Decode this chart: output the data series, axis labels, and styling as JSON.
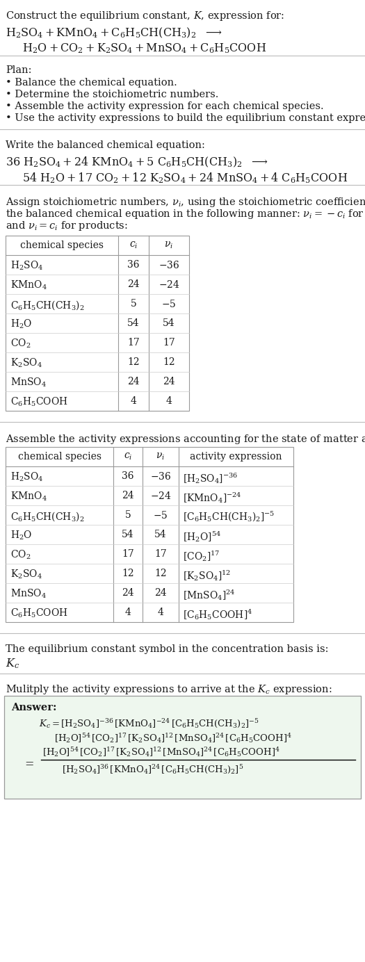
{
  "bg_color": "#ffffff",
  "text_color": "#1a1a1a",
  "font_size_body": 10.5,
  "font_size_chem": 11.5,
  "font_size_table": 10.0,
  "font_size_small": 9.5,
  "sections": {
    "title": "Construct the equilibrium constant, $K$, expression for:",
    "rxn_line1": "$\\mathrm{H_2SO_4 + KMnO_4 + C_6H_5CH(CH_3)_2}$  $\\longrightarrow$",
    "rxn_line2": "  $\\mathrm{H_2O + CO_2 + K_2SO_4 + MnSO_4 + C_6H_5COOH}$",
    "plan_header": "Plan:",
    "plan_items": [
      "\\textbullet\\ Balance the chemical equation.",
      "\\textbullet\\ Determine the stoichiometric numbers.",
      "\\textbullet\\ Assemble the activity expression for each chemical species.",
      "\\textbullet\\ Use the activity expressions to build the equilibrium constant expression."
    ],
    "bal_header": "Write the balanced chemical equation:",
    "bal_line1": "$\\mathrm{36\\ H_2SO_4 + 24\\ KMnO_4 + 5\\ C_6H_5CH(CH_3)_2}$  $\\longrightarrow$",
    "bal_line2": "  $\\mathrm{54\\ H_2O + 17\\ CO_2 + 12\\ K_2SO_4 + 24\\ MnSO_4 + 4\\ C_6H_5COOH}$",
    "stoich_header": "Assign stoichiometric numbers, $\\nu_i$, using the stoichiometric coefficients, $c_i$, from\nthe balanced chemical equation in the following manner: $\\nu_i = -c_i$ for reactants\nand $\\nu_i = c_i$ for products:",
    "table1_col_headers": [
      "chemical species",
      "$c_i$",
      "$\\nu_i$"
    ],
    "table1_rows": [
      [
        "$\\mathrm{H_2SO_4}$",
        "36",
        "$-36$"
      ],
      [
        "$\\mathrm{KMnO_4}$",
        "24",
        "$-24$"
      ],
      [
        "$\\mathrm{C_6H_5CH(CH_3)_2}$",
        "5",
        "$-5$"
      ],
      [
        "$\\mathrm{H_2O}$",
        "54",
        "54"
      ],
      [
        "$\\mathrm{CO_2}$",
        "17",
        "17"
      ],
      [
        "$\\mathrm{K_2SO_4}$",
        "12",
        "12"
      ],
      [
        "$\\mathrm{MnSO_4}$",
        "24",
        "24"
      ],
      [
        "$\\mathrm{C_6H_5COOH}$",
        "4",
        "4"
      ]
    ],
    "activity_header": "Assemble the activity expressions accounting for the state of matter and $\\nu_i$:",
    "table2_col_headers": [
      "chemical species",
      "$c_i$",
      "$\\nu_i$",
      "activity expression"
    ],
    "table2_rows": [
      [
        "$\\mathrm{H_2SO_4}$",
        "36",
        "$-36$",
        "$[\\mathrm{H_2SO_4}]^{-36}$"
      ],
      [
        "$\\mathrm{KMnO_4}$",
        "24",
        "$-24$",
        "$[\\mathrm{KMnO_4}]^{-24}$"
      ],
      [
        "$\\mathrm{C_6H_5CH(CH_3)_2}$",
        "5",
        "$-5$",
        "$[\\mathrm{C_6H_5CH(CH_3)_2}]^{-5}$"
      ],
      [
        "$\\mathrm{H_2O}$",
        "54",
        "54",
        "$[\\mathrm{H_2O}]^{54}$"
      ],
      [
        "$\\mathrm{CO_2}$",
        "17",
        "17",
        "$[\\mathrm{CO_2}]^{17}$"
      ],
      [
        "$\\mathrm{K_2SO_4}$",
        "12",
        "12",
        "$[\\mathrm{K_2SO_4}]^{12}$"
      ],
      [
        "$\\mathrm{MnSO_4}$",
        "24",
        "24",
        "$[\\mathrm{MnSO_4}]^{24}$"
      ],
      [
        "$\\mathrm{C_6H_5COOH}$",
        "4",
        "4",
        "$[\\mathrm{C_6H_5COOH}]^{4}$"
      ]
    ],
    "kc_statement": "The equilibrium constant symbol in the concentration basis is:",
    "kc_symbol": "$K_c$",
    "multiply_statement": "Mulitply the activity expressions to arrive at the $K_c$ expression:",
    "answer_label": "Answer:",
    "ans_line1a": "$K_c = [\\mathrm{H_2SO_4}]^{-36}\\,[\\mathrm{KMnO_4}]^{-24}\\,[\\mathrm{C_6H_5CH(CH_3)_2}]^{-5}$",
    "ans_line1b": "$[\\mathrm{H_2O}]^{54}\\,[\\mathrm{CO_2}]^{17}\\,[\\mathrm{K_2SO_4}]^{12}\\,[\\mathrm{MnSO_4}]^{24}\\,[\\mathrm{C_6H_5COOH}]^{4}$",
    "ans_num": "$[\\mathrm{H_2O}]^{54}\\,[\\mathrm{CO_2}]^{17}\\,[\\mathrm{K_2SO_4}]^{12}\\,[\\mathrm{MnSO_4}]^{24}\\,[\\mathrm{C_6H_5COOH}]^{4}$",
    "ans_den": "$[\\mathrm{H_2SO_4}]^{36}\\,[\\mathrm{KMnO_4}]^{24}\\,[\\mathrm{C_6H_5CH(CH_3)_2}]^{5}$"
  }
}
